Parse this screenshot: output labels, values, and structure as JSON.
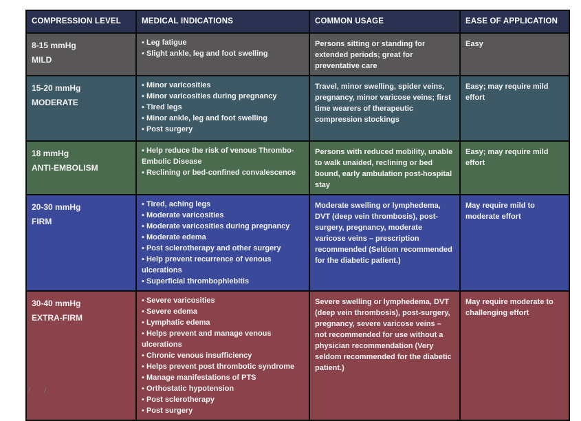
{
  "table": {
    "columns": [
      "COMPRESSION LEVEL",
      "MEDICAL INDICATIONS",
      "COMMON USAGE",
      "EASE OF APPLICATION"
    ],
    "header_color": "#2b3150",
    "rows": [
      {
        "level_value": "8-15 mmHg",
        "level_name": "MILD",
        "color": "#585656",
        "indications": [
          "Leg fatigue",
          "Slight ankle, leg and foot swelling"
        ],
        "usage": "Persons sitting or standing for extended periods; great for preventative care",
        "ease": "Easy"
      },
      {
        "level_value": "15-20 mmHg",
        "level_name": "MODERATE",
        "color": "#3e5966",
        "indications": [
          "Minor varicosities",
          "Minor varicosities during pregnancy",
          "Tired legs",
          "Minor ankle, leg and foot swelling",
          "Post surgery"
        ],
        "usage": "Travel, minor swelling, spider veins, pregnancy, minor varicose veins; first time wearers of therapeutic compression stockings",
        "ease": "Easy; may require mild effort"
      },
      {
        "level_value": "18 mmHg",
        "level_name": "ANTI-EMBOLISM",
        "color": "#4b6b4e",
        "indications": [
          "Help reduce the risk of venous Thrombo-Embolic Disease",
          "Reclining or bed-confined convalescence"
        ],
        "usage": "Persons with reduced mobility, unable to walk unaided, reclining or bed bound, early ambulation post-hospital stay",
        "ease": "Easy; may require mild effort"
      },
      {
        "level_value": "20-30 mmHg",
        "level_name": "FIRM",
        "color": "#3b499b",
        "indications": [
          "Tired, aching legs",
          "Moderate varicosities",
          "Moderate varicosities during pregnancy",
          "Moderate edema",
          "Post sclerotherapy and other surgery",
          "Help prevent recurrence of venous ulcerations",
          "Superficial thrombophlebitis"
        ],
        "usage": "Moderate swelling or lymphedema, DVT (deep vein thrombosis), post-surgery, pregnancy, moderate varicose veins – prescription recommended (Seldom recommended for the diabetic patient.)",
        "ease": "May require mild to moderate effort"
      },
      {
        "level_value": "30-40 mmHg",
        "level_name": "EXTRA-FIRM",
        "color": "#8b434b",
        "indications": [
          "Severe varicosities",
          "Severe edema",
          "Lymphatic edema",
          "Helps prevent and manage venous ulcerations",
          "Chronic venous insufficiency",
          "Helps prevent post thrombotic syndrome",
          "Manage manifestations of PTS",
          "Orthostatic hypotension",
          "Post sclerotherapy",
          "Post surgery"
        ],
        "usage": "Severe swelling or lymphedema, DVT (deep vein thrombosis), post-surgery, pregnancy, severe varicose veins – not recommended for use without a physician recommendation (Very seldom recommended for the diabetic patient.)",
        "ease": "May require moderate to challenging effort"
      }
    ]
  },
  "footer": {
    "mark1": "/",
    "mark2": "/"
  }
}
